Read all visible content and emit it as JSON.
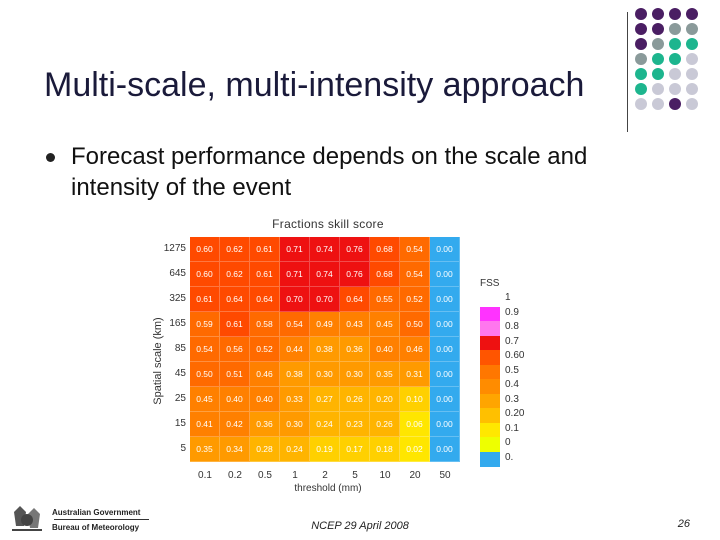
{
  "slide": {
    "title": "Multi-scale, multi-intensity approach",
    "bullet": "Forecast performance depends on the scale and intensity of the event",
    "footer": "NCEP 29 April 2008",
    "page_number": "26",
    "logo_line1": "Australian Government",
    "logo_line2": "Bureau of Meteorology"
  },
  "colors": {
    "dot_purple": "#4a1e63",
    "dot_gray": "#8a9a9a",
    "dot_teal": "#1db58e",
    "dot_light": "#c9c9d6",
    "title_color": "#1a1a3a"
  },
  "dots": [
    [
      "dot_purple",
      "dot_purple",
      "dot_purple",
      "dot_purple"
    ],
    [
      "dot_purple",
      "dot_purple",
      "dot_gray",
      "dot_gray"
    ],
    [
      "dot_purple",
      "dot_gray",
      "dot_teal",
      "dot_teal"
    ],
    [
      "dot_gray",
      "dot_teal",
      "dot_teal",
      "dot_light"
    ],
    [
      "dot_teal",
      "dot_teal",
      "dot_light",
      "dot_light"
    ],
    [
      "dot_teal",
      "dot_light",
      "dot_light",
      "dot_light"
    ],
    [
      "dot_light",
      "dot_light",
      "dot_purple",
      "dot_light"
    ]
  ],
  "chart_data": {
    "type": "heatmap",
    "title": "Fractions skill score",
    "xlabel": "threshold (mm)",
    "ylabel": "Spatial scale (km)",
    "x_categories": [
      "0.1",
      "0.2",
      "0.5",
      "1",
      "2",
      "5",
      "10",
      "20",
      "50"
    ],
    "y_categories": [
      "1275",
      "645",
      "325",
      "165",
      "85",
      "45",
      "25",
      "15",
      "5"
    ],
    "values": [
      [
        "0.60",
        "0.62",
        "0.61",
        "0.71",
        "0.74",
        "0.76",
        "0.68",
        "0.54",
        "0.00"
      ],
      [
        "0.60",
        "0.62",
        "0.61",
        "0.71",
        "0.74",
        "0.76",
        "0.68",
        "0.54",
        "0.00"
      ],
      [
        "0.61",
        "0.64",
        "0.64",
        "0.70",
        "0.70",
        "0.64",
        "0.55",
        "0.52",
        "0.00"
      ],
      [
        "0.59",
        "0.61",
        "0.58",
        "0.54",
        "0.49",
        "0.43",
        "0.45",
        "0.50",
        "0.00"
      ],
      [
        "0.54",
        "0.56",
        "0.52",
        "0.44",
        "0.38",
        "0.36",
        "0.40",
        "0.46",
        "0.00"
      ],
      [
        "0.50",
        "0.51",
        "0.46",
        "0.38",
        "0.30",
        "0.30",
        "0.35",
        "0.31",
        "0.00"
      ],
      [
        "0.45",
        "0.40",
        "0.40",
        "0.33",
        "0.27",
        "0.26",
        "0.20",
        "0.10",
        "0.00"
      ],
      [
        "0.41",
        "0.42",
        "0.36",
        "0.30",
        "0.24",
        "0.23",
        "0.26",
        "0.06",
        "0.00"
      ],
      [
        "0.35",
        "0.34",
        "0.28",
        "0.24",
        "0.19",
        "0.17",
        "0.18",
        "0.02",
        "0.00"
      ]
    ],
    "legend": {
      "title": "FSS",
      "labels": [
        "1",
        "0.9",
        "0.8",
        "0.7",
        "0.60",
        "0.5",
        "0.4",
        "0.3",
        "0.20",
        "0.1",
        "0",
        "0."
      ],
      "colors": [
        "#ffffff",
        "#ff33ff",
        "#ff77ee",
        "#ee1111",
        "#ff5500",
        "#ff7700",
        "#ff8c00",
        "#ffa500",
        "#ffc000",
        "#ffe800",
        "#eeff00",
        "#33aaee"
      ]
    }
  }
}
